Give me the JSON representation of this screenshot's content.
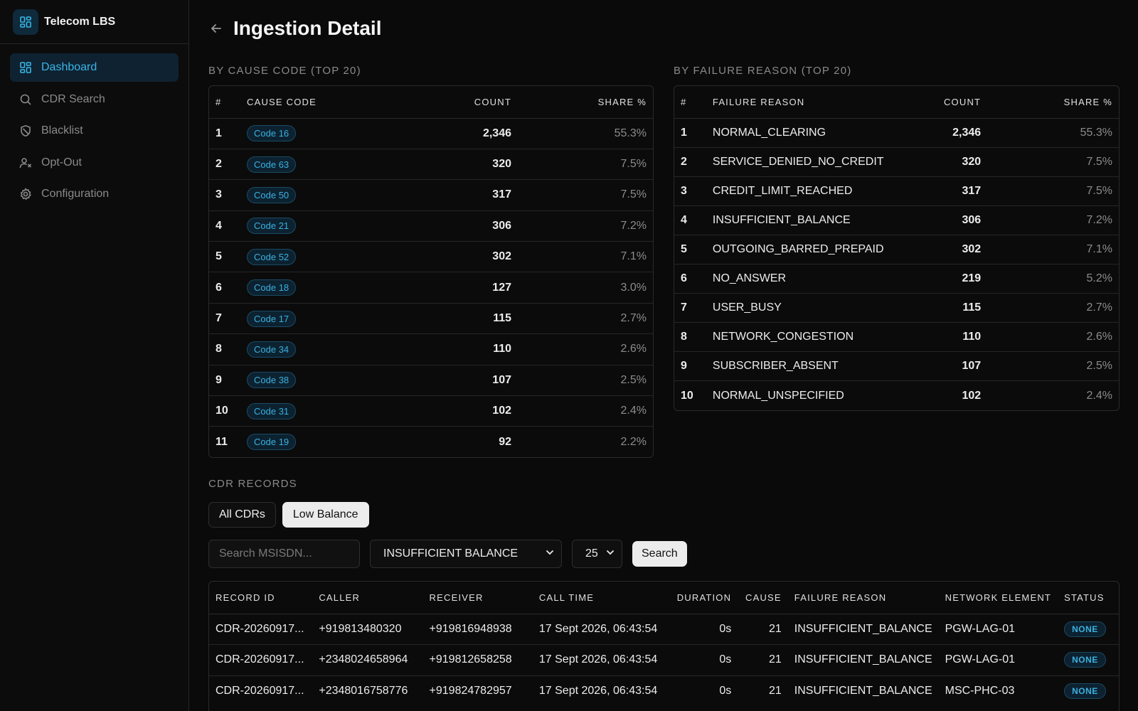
{
  "app": {
    "name": "Telecom LBS"
  },
  "sidebar": {
    "items": [
      {
        "label": "Dashboard",
        "icon": "dashboard-icon",
        "active": true
      },
      {
        "label": "CDR Search",
        "icon": "search-icon",
        "active": false
      },
      {
        "label": "Blacklist",
        "icon": "shield-icon",
        "active": false
      },
      {
        "label": "Opt-Out",
        "icon": "user-x-icon",
        "active": false
      },
      {
        "label": "Configuration",
        "icon": "gear-icon",
        "active": false
      }
    ]
  },
  "page": {
    "title": "Ingestion Detail"
  },
  "cause_section": {
    "label": "BY CAUSE CODE (TOP 20)",
    "headers": [
      "#",
      "CAUSE CODE",
      "COUNT",
      "SHARE %"
    ],
    "rows": [
      {
        "rank": "1",
        "code": "Code 16",
        "count": "2,346",
        "share": "55.3%"
      },
      {
        "rank": "2",
        "code": "Code 63",
        "count": "320",
        "share": "7.5%"
      },
      {
        "rank": "3",
        "code": "Code 50",
        "count": "317",
        "share": "7.5%"
      },
      {
        "rank": "4",
        "code": "Code 21",
        "count": "306",
        "share": "7.2%"
      },
      {
        "rank": "5",
        "code": "Code 52",
        "count": "302",
        "share": "7.1%"
      },
      {
        "rank": "6",
        "code": "Code 18",
        "count": "127",
        "share": "3.0%"
      },
      {
        "rank": "7",
        "code": "Code 17",
        "count": "115",
        "share": "2.7%"
      },
      {
        "rank": "8",
        "code": "Code 34",
        "count": "110",
        "share": "2.6%"
      },
      {
        "rank": "9",
        "code": "Code 38",
        "count": "107",
        "share": "2.5%"
      },
      {
        "rank": "10",
        "code": "Code 31",
        "count": "102",
        "share": "2.4%"
      },
      {
        "rank": "11",
        "code": "Code 19",
        "count": "92",
        "share": "2.2%"
      }
    ]
  },
  "failure_section": {
    "label": "BY FAILURE REASON (TOP 20)",
    "headers": [
      "#",
      "FAILURE REASON",
      "COUNT",
      "SHARE %"
    ],
    "rows": [
      {
        "rank": "1",
        "reason": "NORMAL_CLEARING",
        "count": "2,346",
        "share": "55.3%"
      },
      {
        "rank": "2",
        "reason": "SERVICE_DENIED_NO_CREDIT",
        "count": "320",
        "share": "7.5%"
      },
      {
        "rank": "3",
        "reason": "CREDIT_LIMIT_REACHED",
        "count": "317",
        "share": "7.5%"
      },
      {
        "rank": "4",
        "reason": "INSUFFICIENT_BALANCE",
        "count": "306",
        "share": "7.2%"
      },
      {
        "rank": "5",
        "reason": "OUTGOING_BARRED_PREPAID",
        "count": "302",
        "share": "7.1%"
      },
      {
        "rank": "6",
        "reason": "NO_ANSWER",
        "count": "219",
        "share": "5.2%"
      },
      {
        "rank": "7",
        "reason": "USER_BUSY",
        "count": "115",
        "share": "2.7%"
      },
      {
        "rank": "8",
        "reason": "NETWORK_CONGESTION",
        "count": "110",
        "share": "2.6%"
      },
      {
        "rank": "9",
        "reason": "SUBSCRIBER_ABSENT",
        "count": "107",
        "share": "2.5%"
      },
      {
        "rank": "10",
        "reason": "NORMAL_UNSPECIFIED",
        "count": "102",
        "share": "2.4%"
      }
    ]
  },
  "cdr_section": {
    "label": "CDR RECORDS",
    "tabs": [
      {
        "label": "All CDRs",
        "active": false
      },
      {
        "label": "Low Balance",
        "active": true
      }
    ],
    "search_placeholder": "Search MSISDN...",
    "reason_filter": "INSUFFICIENT BALANCE",
    "page_size": "25",
    "search_button": "Search",
    "headers": [
      "RECORD ID",
      "CALLER",
      "RECEIVER",
      "CALL TIME",
      "DURATION",
      "CAUSE",
      "FAILURE REASON",
      "NETWORK ELEMENT",
      "STATUS"
    ],
    "rows": [
      {
        "id": "CDR-20260917...",
        "caller": "+919813480320",
        "receiver": "+919816948938",
        "time": "17 Sept 2026, 06:43:54",
        "duration": "0s",
        "cause": "21",
        "reason": "INSUFFICIENT_BALANCE",
        "element": "PGW-LAG-01",
        "status": "NONE"
      },
      {
        "id": "CDR-20260917...",
        "caller": "+2348024658964",
        "receiver": "+919812658258",
        "time": "17 Sept 2026, 06:43:54",
        "duration": "0s",
        "cause": "21",
        "reason": "INSUFFICIENT_BALANCE",
        "element": "PGW-LAG-01",
        "status": "NONE"
      },
      {
        "id": "CDR-20260917...",
        "caller": "+2348016758776",
        "receiver": "+919824782957",
        "time": "17 Sept 2026, 06:43:54",
        "duration": "0s",
        "cause": "21",
        "reason": "INSUFFICIENT_BALANCE",
        "element": "MSC-PHC-03",
        "status": "NONE"
      }
    ]
  },
  "colors": {
    "accent": "#38b6e8",
    "background": "#0a0a0a",
    "border": "#2a2a2a"
  }
}
